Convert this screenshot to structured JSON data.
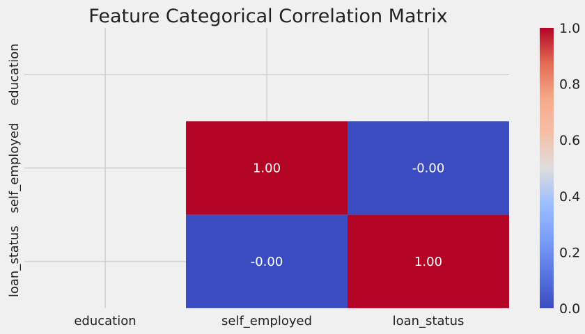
{
  "chart_data": {
    "type": "heatmap",
    "title": "Feature Categorical Correlation Matrix",
    "x_categories": [
      "education",
      "self_employed",
      "loan_status"
    ],
    "y_categories": [
      "education",
      "self_employed",
      "loan_status"
    ],
    "matrix": [
      [
        null,
        null,
        null
      ],
      [
        null,
        1.0,
        -0.0
      ],
      [
        null,
        -0.0,
        1.0
      ]
    ],
    "cell_labels": [
      [
        null,
        null,
        null
      ],
      [
        null,
        "1.00",
        "-0.00"
      ],
      [
        null,
        "-0.00",
        "1.00"
      ]
    ],
    "colormap": "coolwarm",
    "colorbar": {
      "min": 0.0,
      "max": 1.0,
      "ticks": [
        "0.0",
        "0.2",
        "0.4",
        "0.6",
        "0.8",
        "1.0"
      ]
    },
    "colors": {
      "low": "#3b4cc0",
      "mid": "#dddddd",
      "high": "#b40426"
    },
    "grid": true
  }
}
